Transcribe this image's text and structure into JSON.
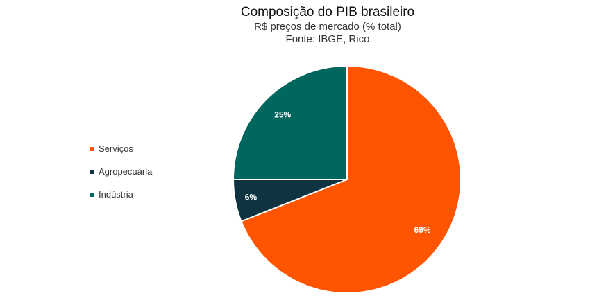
{
  "chart_data": {
    "type": "pie",
    "title": "Composição do PIB brasileiro",
    "subtitle": "R$ preços de mercado (% total)",
    "source": "Fonte: IBGE, Rico",
    "legend_position": "left",
    "slices": [
      {
        "name": "Serviços",
        "value": 69,
        "label": "69%",
        "color": "#FF5500"
      },
      {
        "name": "Agropecuária",
        "value": 6,
        "label": "6%",
        "color": "#0F3341"
      },
      {
        "name": "Indústria",
        "value": 25,
        "label": "25%",
        "color": "#00665E"
      }
    ]
  }
}
